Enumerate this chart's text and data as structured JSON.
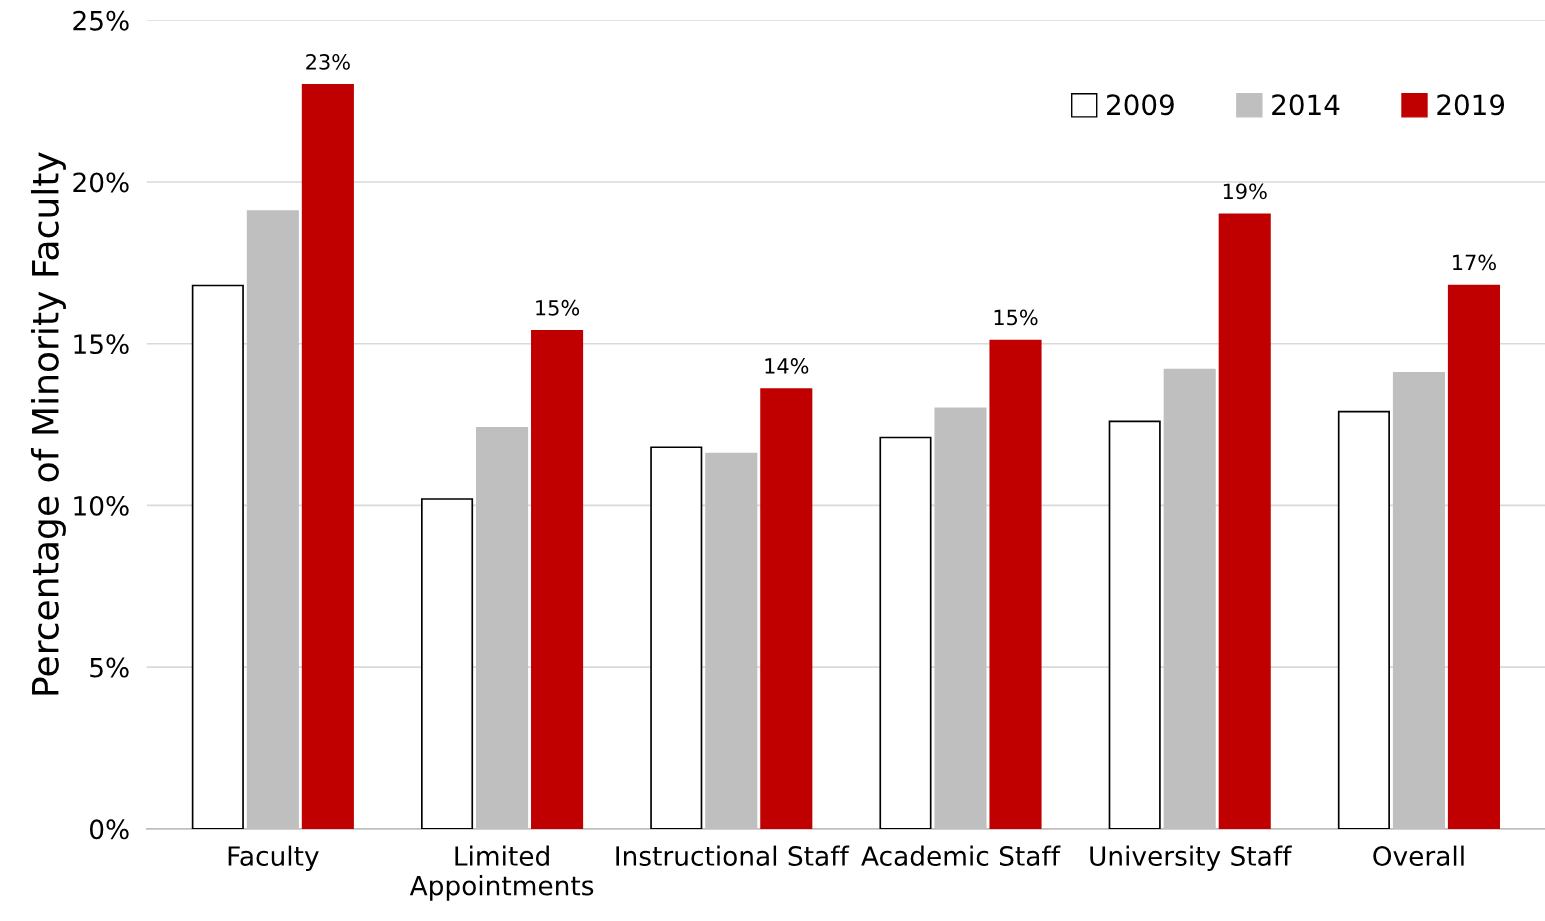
{
  "chart_data": {
    "type": "bar",
    "ylabel": "Percentage of Minority Faculty",
    "categories": [
      "Faculty",
      "Limited\nAppointments",
      "Instructional Staff",
      "Academic Staff",
      "University Staff",
      "Overall"
    ],
    "series": [
      {
        "name": "2009",
        "color": "#ffffff",
        "values": [
          16.8,
          10.2,
          11.8,
          12.1,
          12.6,
          12.9
        ]
      },
      {
        "name": "2014",
        "color": "#bfbfbf",
        "values": [
          19.1,
          12.4,
          11.6,
          13.0,
          14.2,
          14.1
        ]
      },
      {
        "name": "2019",
        "color": "#c00000",
        "values": [
          23.0,
          15.4,
          13.6,
          15.1,
          19.0,
          16.8
        ],
        "value_labels": [
          "23%",
          "15%",
          "14%",
          "15%",
          "19%",
          "17%"
        ]
      }
    ],
    "ylim": [
      0,
      25
    ],
    "yticks": [
      {
        "value": 0,
        "label": "0%"
      },
      {
        "value": 5,
        "label": "5%"
      },
      {
        "value": 10,
        "label": "10%"
      },
      {
        "value": 15,
        "label": "15%"
      },
      {
        "value": 20,
        "label": "20%"
      },
      {
        "value": 25,
        "label": "25%"
      }
    ],
    "grid": "y",
    "legend": "top right"
  }
}
